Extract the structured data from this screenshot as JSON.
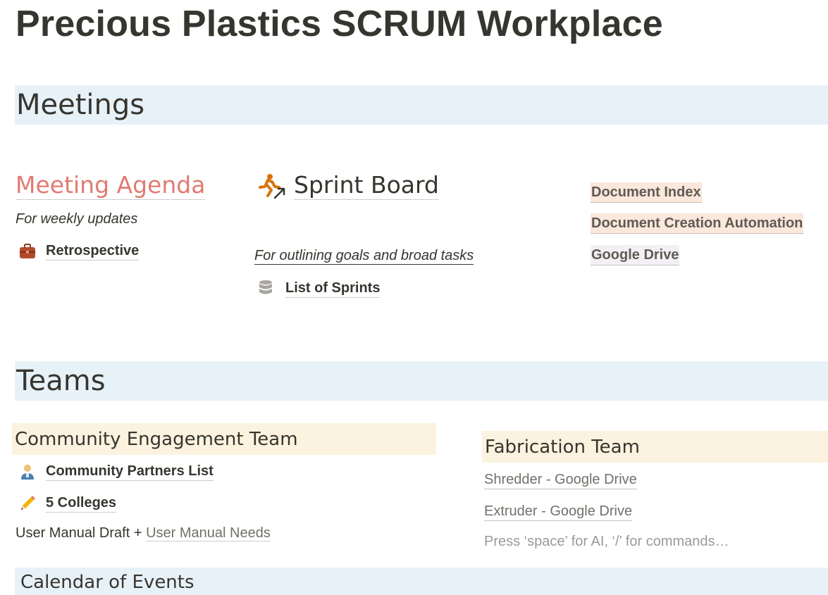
{
  "page": {
    "title": "Precious Plastics SCRUM Workplace"
  },
  "meetings": {
    "heading": "Meetings",
    "agenda": {
      "title": "Meeting Agenda",
      "description": "For weekly updates",
      "retrospective_label": "Retrospective",
      "retrospective_icon": "briefcase-icon"
    },
    "sprint": {
      "title": "Sprint Board",
      "icon": "running-person-icon",
      "description": "For outlining goals and broad tasks",
      "list_label": "List of Sprints",
      "list_icon": "database-icon"
    },
    "links": [
      {
        "label": "Document Index",
        "highlight": "#fbe7dc"
      },
      {
        "label": "Document Creation Automation",
        "highlight": "#fbe7dc"
      },
      {
        "label": "Google Drive",
        "highlight": "#f2f0f5"
      }
    ]
  },
  "teams": {
    "heading": "Teams",
    "community": {
      "title": "Community Engagement Team",
      "items": [
        {
          "label": "Community Partners List",
          "icon": "person-icon"
        },
        {
          "label": "5 Colleges",
          "icon": "pencil-icon"
        }
      ],
      "manual_text": "User Manual Draft +",
      "manual_link": "User Manual Needs"
    },
    "fabrication": {
      "title": "Fabrication Team",
      "links": [
        "Shredder - Google Drive",
        "Extruder - Google Drive"
      ],
      "placeholder": "Press ‘space’ for AI, ‘/’ for commands…"
    }
  },
  "calendar": {
    "heading": "Calendar of Events"
  },
  "colors": {
    "section_band": "#e7f1f8",
    "team_band": "#fbf3df",
    "agenda_accent": "#e07b72",
    "text": "#37352f"
  }
}
